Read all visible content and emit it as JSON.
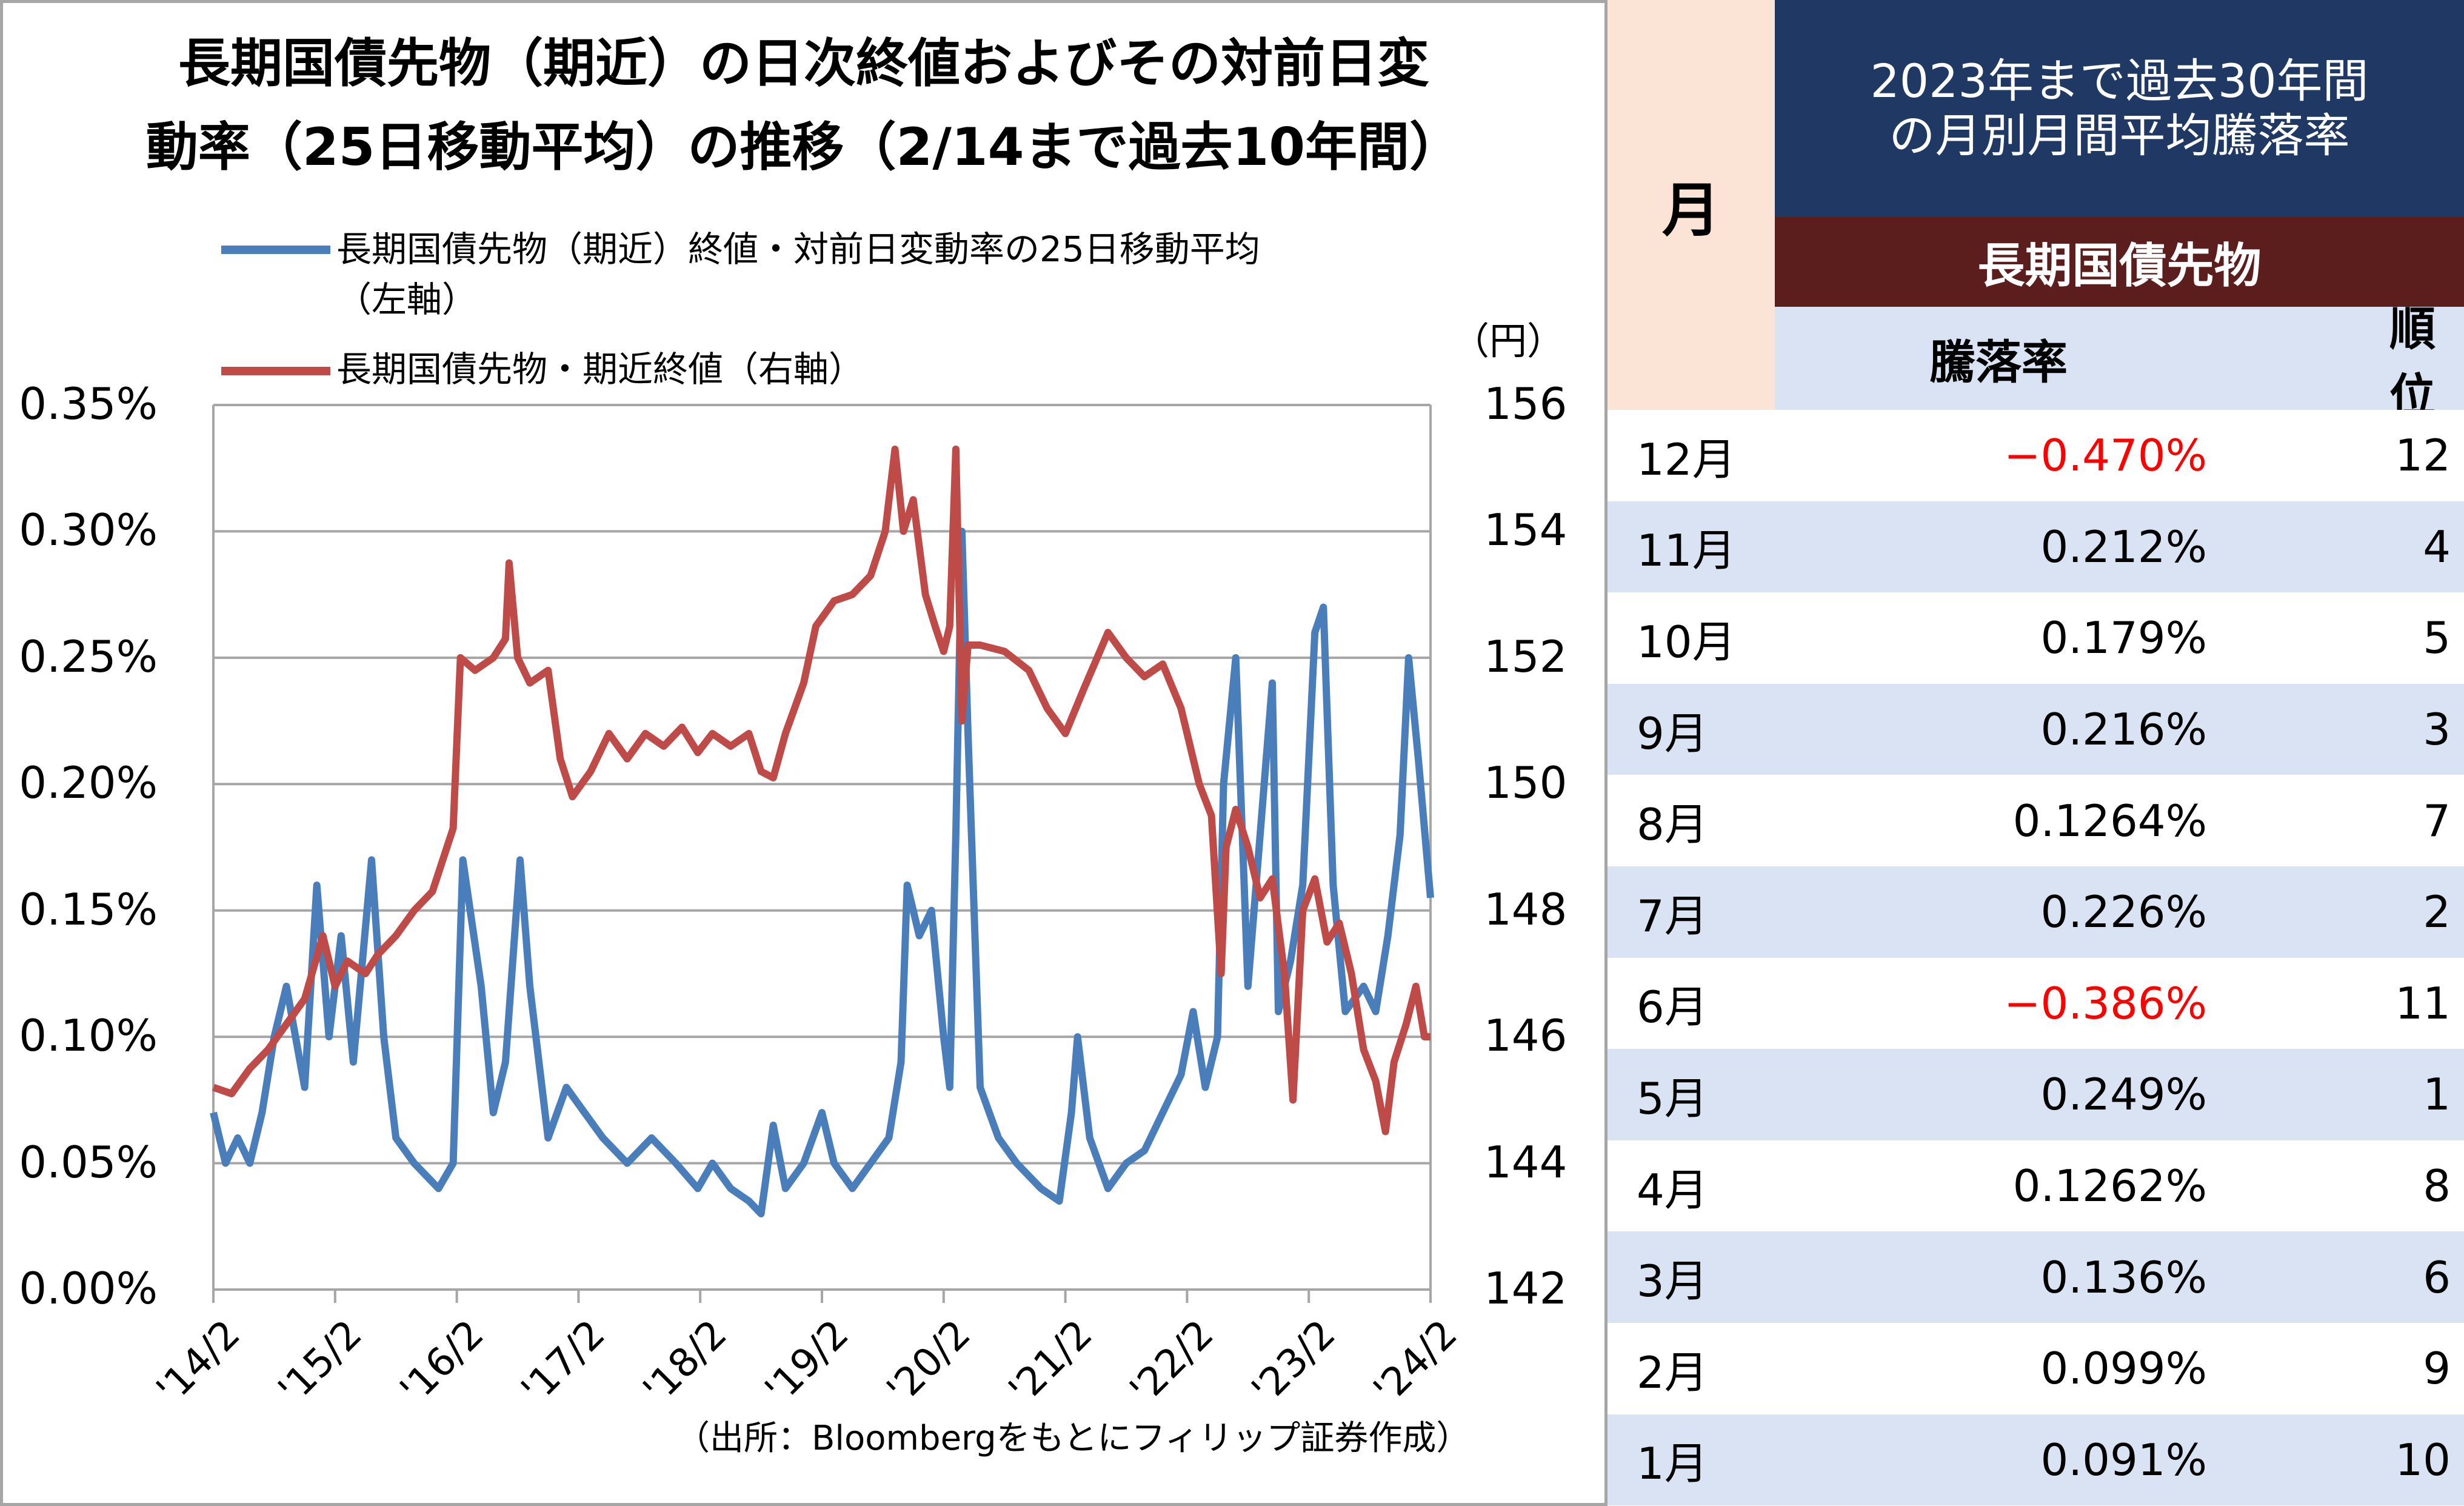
{
  "chart_title": {
    "line1": "長期国債先物（期近）の日次終値およびその対前日変",
    "line2": "動率（25日移動平均）の推移（2/14まで過去10年間）"
  },
  "legend": {
    "series1_line1": "長期国債先物（期近）終値・対前日変動率の25日移動平均",
    "series1_line2": "（左軸）",
    "series2": "長期国債先物・期近終値（右軸）"
  },
  "unit_label": "（円）",
  "source": "（出所：Bloombergをもとにフィリップ証券作成）",
  "colors": {
    "series1": "#4a7ebb",
    "series2": "#be4b48",
    "grid": "#a6a6a6"
  },
  "chart_data": {
    "type": "line",
    "x_tick_labels": [
      "'14/2",
      "'15/2",
      "'16/2",
      "'17/2",
      "'18/2",
      "'19/2",
      "'20/2",
      "'21/2",
      "'22/2",
      "'23/2",
      "'24/2"
    ],
    "y_left": {
      "ticks": [
        "0.00%",
        "0.05%",
        "0.10%",
        "0.15%",
        "0.20%",
        "0.25%",
        "0.30%",
        "0.35%"
      ],
      "range": [
        0,
        0.35
      ]
    },
    "y_right": {
      "ticks": [
        "142",
        "144",
        "146",
        "148",
        "150",
        "152",
        "154",
        "156"
      ],
      "range": [
        142,
        156
      ]
    },
    "grid": "horizontal",
    "series": [
      {
        "axis": "left",
        "points": [
          [
            0,
            0.07
          ],
          [
            0.1,
            0.05
          ],
          [
            0.2,
            0.06
          ],
          [
            0.3,
            0.05
          ],
          [
            0.4,
            0.07
          ],
          [
            0.5,
            0.1
          ],
          [
            0.6,
            0.12
          ],
          [
            0.75,
            0.08
          ],
          [
            0.85,
            0.16
          ],
          [
            0.95,
            0.1
          ],
          [
            1.05,
            0.14
          ],
          [
            1.15,
            0.09
          ],
          [
            1.3,
            0.17
          ],
          [
            1.4,
            0.1
          ],
          [
            1.5,
            0.06
          ],
          [
            1.65,
            0.05
          ],
          [
            1.85,
            0.04
          ],
          [
            1.97,
            0.05
          ],
          [
            2.05,
            0.17
          ],
          [
            2.2,
            0.12
          ],
          [
            2.3,
            0.07
          ],
          [
            2.4,
            0.09
          ],
          [
            2.52,
            0.17
          ],
          [
            2.6,
            0.12
          ],
          [
            2.75,
            0.06
          ],
          [
            2.9,
            0.08
          ],
          [
            3.05,
            0.07
          ],
          [
            3.2,
            0.06
          ],
          [
            3.4,
            0.05
          ],
          [
            3.6,
            0.06
          ],
          [
            3.8,
            0.05
          ],
          [
            3.98,
            0.04
          ],
          [
            4.1,
            0.05
          ],
          [
            4.25,
            0.04
          ],
          [
            4.4,
            0.035
          ],
          [
            4.5,
            0.03
          ],
          [
            4.6,
            0.065
          ],
          [
            4.7,
            0.04
          ],
          [
            4.85,
            0.05
          ],
          [
            5.0,
            0.07
          ],
          [
            5.1,
            0.05
          ],
          [
            5.25,
            0.04
          ],
          [
            5.4,
            0.05
          ],
          [
            5.55,
            0.06
          ],
          [
            5.65,
            0.09
          ],
          [
            5.7,
            0.16
          ],
          [
            5.8,
            0.14
          ],
          [
            5.9,
            0.15
          ],
          [
            6.0,
            0.1
          ],
          [
            6.05,
            0.08
          ],
          [
            6.1,
            0.18
          ],
          [
            6.15,
            0.3
          ],
          [
            6.2,
            0.22
          ],
          [
            6.3,
            0.08
          ],
          [
            6.45,
            0.06
          ],
          [
            6.6,
            0.05
          ],
          [
            6.8,
            0.04
          ],
          [
            6.95,
            0.035
          ],
          [
            7.05,
            0.07
          ],
          [
            7.1,
            0.1
          ],
          [
            7.2,
            0.06
          ],
          [
            7.35,
            0.04
          ],
          [
            7.5,
            0.05
          ],
          [
            7.65,
            0.055
          ],
          [
            7.8,
            0.07
          ],
          [
            7.95,
            0.085
          ],
          [
            8.05,
            0.11
          ],
          [
            8.15,
            0.08
          ],
          [
            8.25,
            0.1
          ],
          [
            8.3,
            0.2
          ],
          [
            8.4,
            0.25
          ],
          [
            8.5,
            0.12
          ],
          [
            8.6,
            0.18
          ],
          [
            8.7,
            0.24
          ],
          [
            8.75,
            0.11
          ],
          [
            8.85,
            0.13
          ],
          [
            8.95,
            0.16
          ],
          [
            9.05,
            0.26
          ],
          [
            9.12,
            0.27
          ],
          [
            9.2,
            0.16
          ],
          [
            9.3,
            0.11
          ],
          [
            9.45,
            0.12
          ],
          [
            9.55,
            0.11
          ],
          [
            9.65,
            0.14
          ],
          [
            9.75,
            0.18
          ],
          [
            9.82,
            0.25
          ],
          [
            9.9,
            0.21
          ],
          [
            10.0,
            0.155
          ]
        ]
      },
      {
        "axis": "right",
        "points": [
          [
            0,
            145.2
          ],
          [
            0.15,
            145.1
          ],
          [
            0.3,
            145.5
          ],
          [
            0.45,
            145.8
          ],
          [
            0.6,
            146.2
          ],
          [
            0.75,
            146.6
          ],
          [
            0.9,
            147.6
          ],
          [
            1.0,
            146.8
          ],
          [
            1.1,
            147.2
          ],
          [
            1.25,
            147.0
          ],
          [
            1.35,
            147.3
          ],
          [
            1.5,
            147.6
          ],
          [
            1.65,
            148.0
          ],
          [
            1.8,
            148.3
          ],
          [
            1.97,
            149.3
          ],
          [
            2.03,
            152.0
          ],
          [
            2.15,
            151.8
          ],
          [
            2.3,
            152.0
          ],
          [
            2.4,
            152.3
          ],
          [
            2.43,
            153.5
          ],
          [
            2.5,
            152.0
          ],
          [
            2.6,
            151.6
          ],
          [
            2.75,
            151.8
          ],
          [
            2.85,
            150.4
          ],
          [
            2.95,
            149.8
          ],
          [
            3.1,
            150.2
          ],
          [
            3.25,
            150.8
          ],
          [
            3.4,
            150.4
          ],
          [
            3.55,
            150.8
          ],
          [
            3.7,
            150.6
          ],
          [
            3.85,
            150.9
          ],
          [
            3.98,
            150.5
          ],
          [
            4.1,
            150.8
          ],
          [
            4.25,
            150.6
          ],
          [
            4.4,
            150.8
          ],
          [
            4.5,
            150.2
          ],
          [
            4.6,
            150.1
          ],
          [
            4.7,
            150.8
          ],
          [
            4.85,
            151.6
          ],
          [
            4.95,
            152.5
          ],
          [
            5.1,
            152.9
          ],
          [
            5.25,
            153.0
          ],
          [
            5.4,
            153.3
          ],
          [
            5.52,
            154.0
          ],
          [
            5.6,
            155.3
          ],
          [
            5.67,
            154.0
          ],
          [
            5.75,
            154.5
          ],
          [
            5.85,
            153.0
          ],
          [
            5.93,
            152.5
          ],
          [
            6.0,
            152.1
          ],
          [
            6.05,
            152.5
          ],
          [
            6.1,
            155.3
          ],
          [
            6.15,
            151.0
          ],
          [
            6.2,
            152.2
          ],
          [
            6.3,
            152.2
          ],
          [
            6.5,
            152.1
          ],
          [
            6.7,
            151.8
          ],
          [
            6.85,
            151.2
          ],
          [
            7.0,
            150.8
          ],
          [
            7.15,
            151.5
          ],
          [
            7.35,
            152.4
          ],
          [
            7.5,
            152.0
          ],
          [
            7.65,
            151.7
          ],
          [
            7.8,
            151.9
          ],
          [
            7.95,
            151.2
          ],
          [
            8.1,
            150.0
          ],
          [
            8.2,
            149.5
          ],
          [
            8.28,
            147.0
          ],
          [
            8.32,
            149.0
          ],
          [
            8.4,
            149.6
          ],
          [
            8.5,
            149.0
          ],
          [
            8.6,
            148.2
          ],
          [
            8.7,
            148.5
          ],
          [
            8.8,
            147.0
          ],
          [
            8.87,
            145.0
          ],
          [
            8.95,
            148.0
          ],
          [
            9.05,
            148.5
          ],
          [
            9.15,
            147.5
          ],
          [
            9.25,
            147.8
          ],
          [
            9.35,
            147.0
          ],
          [
            9.45,
            145.8
          ],
          [
            9.55,
            145.3
          ],
          [
            9.63,
            144.5
          ],
          [
            9.7,
            145.6
          ],
          [
            9.8,
            146.2
          ],
          [
            9.88,
            146.8
          ],
          [
            9.95,
            146.0
          ],
          [
            10.0,
            146.0
          ]
        ]
      }
    ]
  },
  "table": {
    "header_month": "月",
    "header_blue_line1": "2023年まで過去30年間",
    "header_blue_line2": "の月別月間平均騰落率",
    "header_brown": "長期国債先物",
    "col_rate": "騰落率",
    "col_rank": "順位",
    "rows": [
      {
        "month": "12月",
        "rate": "−0.470%",
        "rank": "12",
        "negative": true
      },
      {
        "month": "11月",
        "rate": "0.212%",
        "rank": "4",
        "negative": false
      },
      {
        "month": "10月",
        "rate": "0.179%",
        "rank": "5",
        "negative": false
      },
      {
        "month": "9月",
        "rate": "0.216%",
        "rank": "3",
        "negative": false
      },
      {
        "month": "8月",
        "rate": "0.1264%",
        "rank": "7",
        "negative": false
      },
      {
        "month": "7月",
        "rate": "0.226%",
        "rank": "2",
        "negative": false
      },
      {
        "month": "6月",
        "rate": "−0.386%",
        "rank": "11",
        "negative": true
      },
      {
        "month": "5月",
        "rate": "0.249%",
        "rank": "1",
        "negative": false
      },
      {
        "month": "4月",
        "rate": "0.1262%",
        "rank": "8",
        "negative": false
      },
      {
        "month": "3月",
        "rate": "0.136%",
        "rank": "6",
        "negative": false
      },
      {
        "month": "2月",
        "rate": "0.099%",
        "rank": "9",
        "negative": false
      },
      {
        "month": "1月",
        "rate": "0.091%",
        "rank": "10",
        "negative": false
      }
    ]
  }
}
